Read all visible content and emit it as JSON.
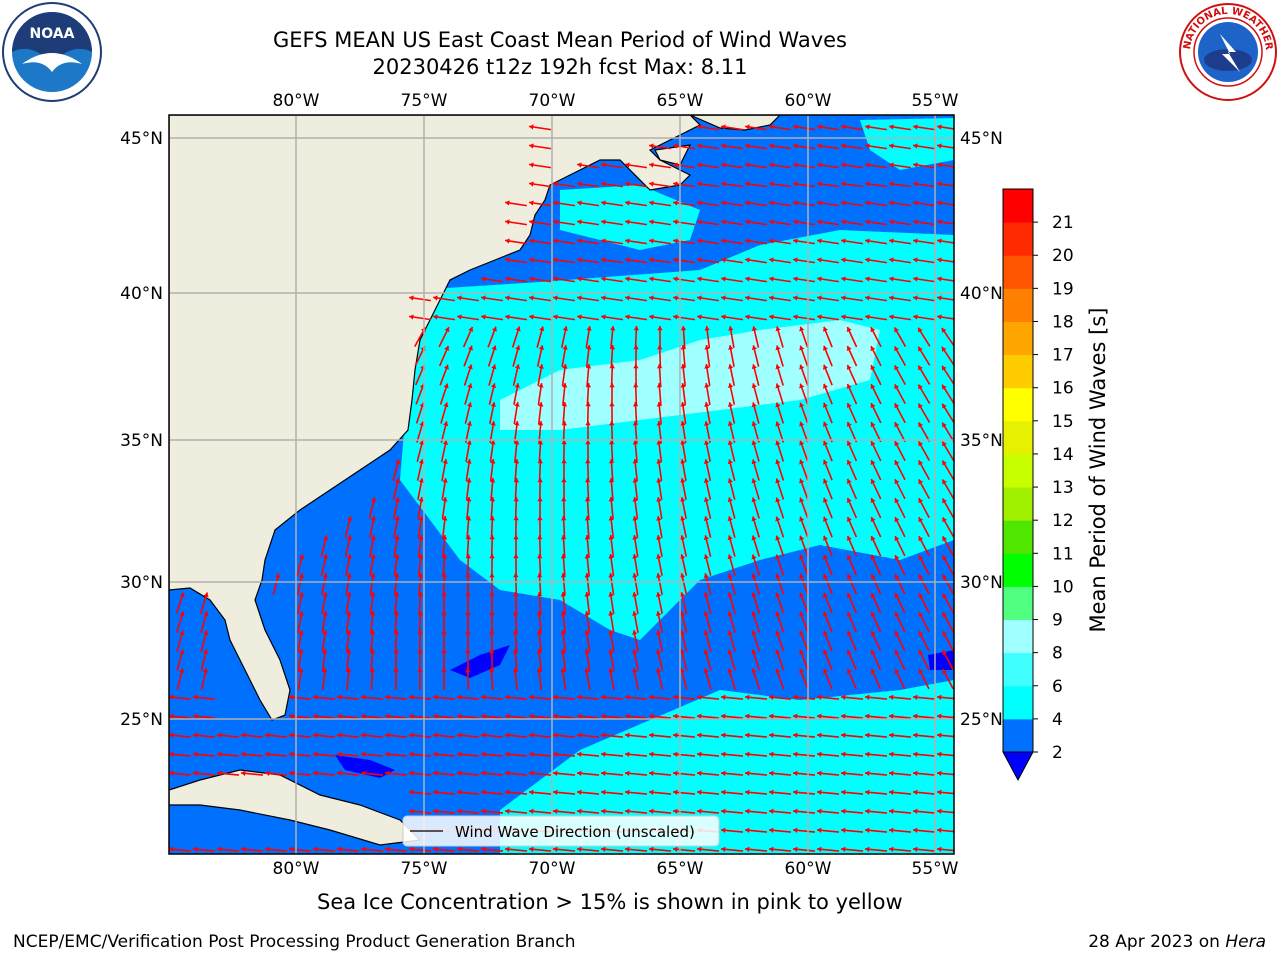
{
  "header": {
    "title_line1": "GEFS MEAN US East Coast Mean Period of Wind Waves",
    "title_line2": "20230426 t12z 192h fcst   Max: 8.11"
  },
  "logos": {
    "noaa_text": "NOAA",
    "nws_text": "NATIONAL WEATHER SERVICE"
  },
  "map": {
    "lon_labels": [
      "80°W",
      "75°W",
      "70°W",
      "65°W",
      "60°W",
      "55°W"
    ],
    "lat_labels": [
      "45°N",
      "40°N",
      "35°N",
      "30°N",
      "25°N"
    ],
    "legend_text": "Wind Wave Direction (unscaled)",
    "arrow_color": "#ff0000",
    "land_color": "#efedde",
    "grid_color": "#b0b0b0"
  },
  "colorbar": {
    "label": "Mean Period of Wind Waves [s]",
    "ticks": [
      "2",
      "4",
      "6",
      "8",
      "9",
      "10",
      "11",
      "12",
      "13",
      "14",
      "15",
      "16",
      "17",
      "18",
      "19",
      "20",
      "21"
    ],
    "under_color": "#0000ff",
    "colors": [
      "#0070ff",
      "#00ffff",
      "#40ffff",
      "#a0ffff",
      "#50ff80",
      "#00ff00",
      "#50e600",
      "#a0f000",
      "#c8ff00",
      "#e6f000",
      "#ffff00",
      "#ffcc00",
      "#ffa600",
      "#ff8000",
      "#ff5500",
      "#ff2a00",
      "#ff0000"
    ]
  },
  "caption": "Sea Ice Concentration > 15% is shown in pink to yellow",
  "footer": {
    "left": "NCEP/EMC/Verification Post Processing Product Generation Branch",
    "right_prefix": "28 Apr 2023 on ",
    "right_host": "Hera"
  }
}
